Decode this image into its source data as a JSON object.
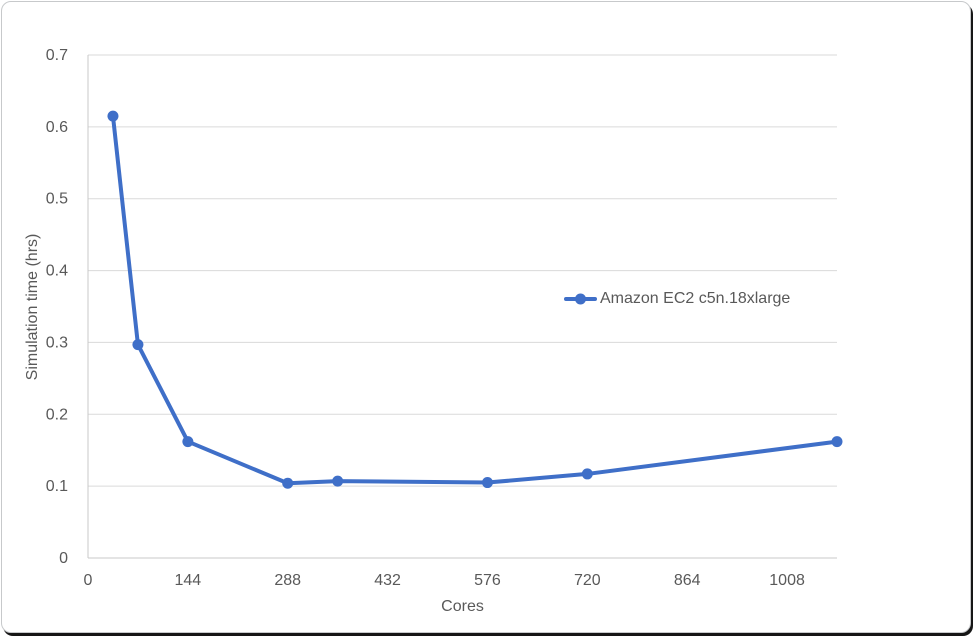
{
  "frame": {
    "background": "#ffffff",
    "border_color": "#c7c9cb",
    "shadow_color": "#161616"
  },
  "chart_data": {
    "type": "line",
    "title": "",
    "xlabel": "Cores",
    "ylabel": "Simulation time (hrs)",
    "xlim": [
      0,
      1080
    ],
    "ylim": [
      0,
      0.7
    ],
    "x_ticks": [
      0,
      144,
      288,
      432,
      576,
      720,
      864,
      1008
    ],
    "y_ticks": [
      0,
      0.1,
      0.2,
      0.3,
      0.4,
      0.5,
      0.6,
      0.7
    ],
    "grid": "horizontal",
    "legend_position": "middle-right",
    "series": [
      {
        "name": "Amazon EC2 c5n.18xlarge",
        "color": "#3f6fc8",
        "marker": "circle",
        "x": [
          36,
          72,
          144,
          288,
          360,
          576,
          720,
          1080
        ],
        "y": [
          0.615,
          0.297,
          0.162,
          0.104,
          0.107,
          0.105,
          0.117,
          0.162
        ]
      }
    ],
    "colors": {
      "text": "#595959",
      "gridline": "#dadada",
      "axis": "#c8c8c8"
    }
  }
}
